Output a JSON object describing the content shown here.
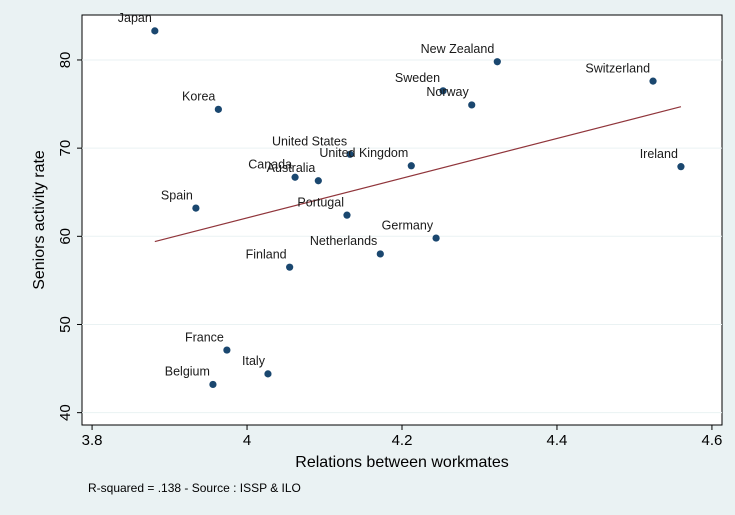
{
  "chart_data": {
    "type": "scatter",
    "xlabel": "Relations between workmates",
    "ylabel": "Seniors activity rate",
    "note": "R-squared = .138 - Source : ISSP  & ILO",
    "labels": [
      "Japan",
      "New Zealand",
      "Switzerland",
      "Sweden",
      "Norway",
      "Korea",
      "United States",
      "United Kingdom",
      "Ireland",
      "Canada",
      "Australia",
      "Spain",
      "Portugal",
      "Germany",
      "Netherlands",
      "Finland",
      "France",
      "Italy",
      "Belgium"
    ],
    "x": [
      3.881,
      4.323,
      4.524,
      4.253,
      4.29,
      3.963,
      4.133,
      4.212,
      4.56,
      4.062,
      4.092,
      3.934,
      4.129,
      4.244,
      4.172,
      4.055,
      3.974,
      4.027,
      3.956
    ],
    "y": [
      83.3,
      79.8,
      77.6,
      76.5,
      74.9,
      74.4,
      69.3,
      68.0,
      67.9,
      66.7,
      66.3,
      63.2,
      62.4,
      59.8,
      58.0,
      56.5,
      47.1,
      44.4,
      43.2
    ],
    "color": "#1a476f",
    "fit_line": {
      "x": [
        3.881,
        4.56
      ],
      "y": [
        59.4,
        74.7
      ],
      "color": "#90353b"
    },
    "xlim": [
      3.787,
      4.613
    ],
    "ylim": [
      38.6,
      85.1
    ],
    "xticks": [
      3.8,
      4,
      4.2,
      4.4,
      4.6
    ],
    "yticks": [
      40,
      50,
      60,
      70,
      80
    ],
    "grid": true
  }
}
